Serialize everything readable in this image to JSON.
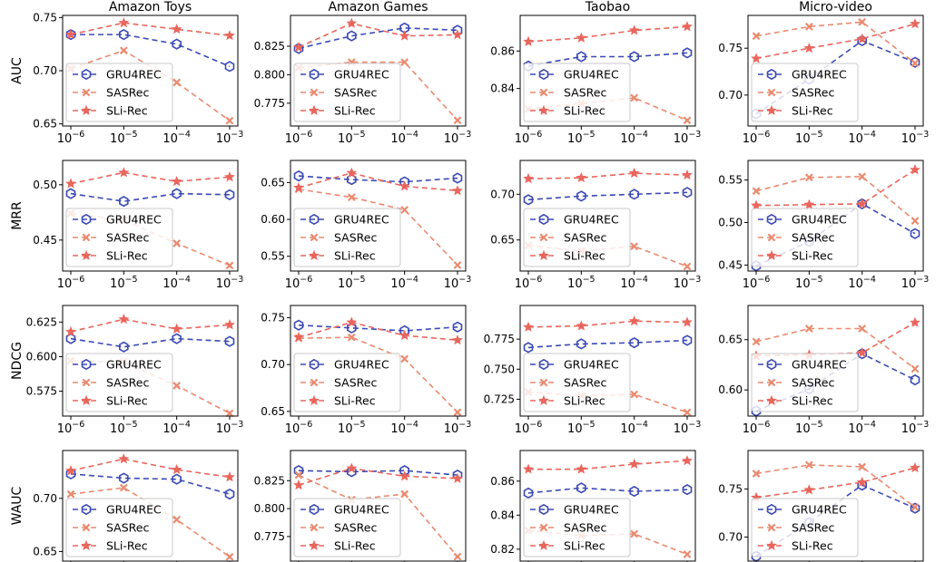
{
  "chart_data": {
    "type": "line",
    "columns": [
      "Amazon Toys",
      "Amazon Games",
      "Taobao",
      "Micro-video"
    ],
    "rows": [
      "AUC",
      "MRR",
      "NDCG",
      "WAUC"
    ],
    "x_ticks": [
      {
        "base": "10",
        "exp": "−6"
      },
      {
        "base": "10",
        "exp": "−5"
      },
      {
        "base": "10",
        "exp": "−4"
      },
      {
        "base": "10",
        "exp": "−3"
      }
    ],
    "x_values": [
      1e-06,
      1e-05,
      0.0001,
      0.001
    ],
    "x_scale": "log",
    "legend": [
      {
        "name": "GRU4REC",
        "color": "#3a49b5",
        "marker": "hexagon"
      },
      {
        "name": "SASRec",
        "color": "#e98a6f",
        "marker": "x"
      },
      {
        "name": "SLi-Rec",
        "color": "#e9665d",
        "marker": "star"
      }
    ],
    "legend_placement": "lower-left",
    "grid": false,
    "panels": [
      {
        "row": "AUC",
        "column": "Amazon Toys",
        "ylim": [
          0.648,
          0.752
        ],
        "yticks": [
          "0.65",
          "0.70",
          "0.75"
        ],
        "ytick_values": [
          0.65,
          0.7,
          0.75
        ],
        "series": [
          {
            "name": "GRU4REC",
            "values": [
              0.734,
              0.734,
              0.725,
              0.704
            ]
          },
          {
            "name": "SASRec",
            "values": [
              0.702,
              0.719,
              0.689,
              0.653
            ]
          },
          {
            "name": "SLi-Rec",
            "values": [
              0.734,
              0.745,
              0.739,
              0.733
            ]
          }
        ]
      },
      {
        "row": "AUC",
        "column": "Amazon Games",
        "ylim": [
          0.755,
          0.852
        ],
        "yticks": [
          "0.775",
          "0.800",
          "0.825"
        ],
        "ytick_values": [
          0.775,
          0.8,
          0.825
        ],
        "series": [
          {
            "name": "GRU4REC",
            "values": [
              0.823,
              0.834,
              0.841,
              0.839
            ]
          },
          {
            "name": "SASRec",
            "values": [
              0.806,
              0.811,
              0.811,
              0.76
            ]
          },
          {
            "name": "SLi-Rec",
            "values": [
              0.824,
              0.845,
              0.834,
              0.835
            ]
          }
        ]
      },
      {
        "row": "AUC",
        "column": "Taobao",
        "ylim": [
          0.82,
          0.879
        ],
        "yticks": [
          "0.84",
          "0.86"
        ],
        "ytick_values": [
          0.84,
          0.86
        ],
        "series": [
          {
            "name": "GRU4REC",
            "values": [
              0.852,
              0.857,
              0.857,
              0.859
            ]
          },
          {
            "name": "SASRec",
            "values": [
              0.829,
              0.832,
              0.835,
              0.823
            ]
          },
          {
            "name": "SLi-Rec",
            "values": [
              0.865,
              0.867,
              0.871,
              0.873
            ]
          }
        ]
      },
      {
        "row": "AUC",
        "column": "Micro-video",
        "ylim": [
          0.667,
          0.785
        ],
        "yticks": [
          "0.70",
          "0.75"
        ],
        "ytick_values": [
          0.7,
          0.75
        ],
        "series": [
          {
            "name": "GRU4REC",
            "values": [
              0.68,
              0.717,
              0.758,
              0.735
            ]
          },
          {
            "name": "SASRec",
            "values": [
              0.763,
              0.773,
              0.778,
              0.734
            ]
          },
          {
            "name": "SLi-Rec",
            "values": [
              0.739,
              0.75,
              0.76,
              0.776
            ]
          }
        ]
      },
      {
        "row": "MRR",
        "column": "Amazon Toys",
        "ylim": [
          0.422,
          0.522
        ],
        "yticks": [
          "0.45",
          "0.50"
        ],
        "ytick_values": [
          0.45,
          0.5
        ],
        "series": [
          {
            "name": "GRU4REC",
            "values": [
              0.492,
              0.485,
              0.492,
              0.491
            ]
          },
          {
            "name": "SASRec",
            "values": [
              0.474,
              0.468,
              0.447,
              0.427
            ]
          },
          {
            "name": "SLi-Rec",
            "values": [
              0.501,
              0.511,
              0.503,
              0.507
            ]
          }
        ]
      },
      {
        "row": "MRR",
        "column": "Amazon Games",
        "ylim": [
          0.53,
          0.68
        ],
        "yticks": [
          "0.55",
          "0.60",
          "0.65"
        ],
        "ytick_values": [
          0.55,
          0.6,
          0.65
        ],
        "series": [
          {
            "name": "GRU4REC",
            "values": [
              0.659,
              0.654,
              0.651,
              0.656
            ]
          },
          {
            "name": "SASRec",
            "values": [
              0.641,
              0.63,
              0.613,
              0.538
            ]
          },
          {
            "name": "SLi-Rec",
            "values": [
              0.643,
              0.663,
              0.645,
              0.639
            ]
          }
        ]
      },
      {
        "row": "MRR",
        "column": "Taobao",
        "ylim": [
          0.616,
          0.737
        ],
        "yticks": [
          "0.65",
          "0.70"
        ],
        "ytick_values": [
          0.65,
          0.7
        ],
        "series": [
          {
            "name": "GRU4REC",
            "values": [
              0.694,
              0.698,
              0.7,
              0.702
            ]
          },
          {
            "name": "SASRec",
            "values": [
              0.644,
              0.638,
              0.643,
              0.621
            ]
          },
          {
            "name": "SLi-Rec",
            "values": [
              0.717,
              0.718,
              0.723,
              0.721
            ]
          }
        ]
      },
      {
        "row": "MRR",
        "column": "Micro-video",
        "ylim": [
          0.443,
          0.573
        ],
        "yticks": [
          "0.45",
          "0.50",
          "0.55"
        ],
        "ytick_values": [
          0.45,
          0.5,
          0.55
        ],
        "series": [
          {
            "name": "GRU4REC",
            "values": [
              0.449,
              0.478,
              0.522,
              0.487
            ]
          },
          {
            "name": "SASRec",
            "values": [
              0.537,
              0.553,
              0.554,
              0.502
            ]
          },
          {
            "name": "SLi-Rec",
            "values": [
              0.52,
              0.521,
              0.522,
              0.562
            ]
          }
        ]
      },
      {
        "row": "NDCG",
        "column": "Amazon Toys",
        "ylim": [
          0.557,
          0.637
        ],
        "yticks": [
          "0.575",
          "0.600",
          "0.625"
        ],
        "ytick_values": [
          0.575,
          0.6,
          0.625
        ],
        "series": [
          {
            "name": "GRU4REC",
            "values": [
              0.613,
              0.607,
              0.613,
              0.611
            ]
          },
          {
            "name": "SASRec",
            "values": [
              0.597,
              0.596,
              0.579,
              0.559
            ]
          },
          {
            "name": "SLi-Rec",
            "values": [
              0.618,
              0.627,
              0.62,
              0.623
            ]
          }
        ]
      },
      {
        "row": "NDCG",
        "column": "Amazon Games",
        "ylim": [
          0.645,
          0.763
        ],
        "yticks": [
          "0.65",
          "0.70",
          "0.75"
        ],
        "ytick_values": [
          0.65,
          0.7,
          0.75
        ],
        "series": [
          {
            "name": "GRU4REC",
            "values": [
              0.742,
              0.739,
              0.736,
              0.74
            ]
          },
          {
            "name": "SASRec",
            "values": [
              0.728,
              0.729,
              0.706,
              0.649
            ]
          },
          {
            "name": "SLi-Rec",
            "values": [
              0.729,
              0.745,
              0.731,
              0.726
            ]
          }
        ]
      },
      {
        "row": "NDCG",
        "column": "Taobao",
        "ylim": [
          0.711,
          0.803
        ],
        "yticks": [
          "0.725",
          "0.750",
          "0.775"
        ],
        "ytick_values": [
          0.725,
          0.75,
          0.775
        ],
        "series": [
          {
            "name": "GRU4REC",
            "values": [
              0.768,
              0.771,
              0.772,
              0.774
            ]
          },
          {
            "name": "SASRec",
            "values": [
              0.731,
              0.728,
              0.729,
              0.714
            ]
          },
          {
            "name": "SLi-Rec",
            "values": [
              0.785,
              0.786,
              0.79,
              0.789
            ]
          }
        ]
      },
      {
        "row": "NDCG",
        "column": "Micro-video",
        "ylim": [
          0.574,
          0.684
        ],
        "yticks": [
          "0.60",
          "0.65"
        ],
        "ytick_values": [
          0.6,
          0.65
        ],
        "series": [
          {
            "name": "GRU4REC",
            "values": [
              0.579,
              0.601,
              0.636,
              0.61
            ]
          },
          {
            "name": "SASRec",
            "values": [
              0.648,
              0.661,
              0.661,
              0.621
            ]
          },
          {
            "name": "SLi-Rec",
            "values": [
              0.634,
              0.635,
              0.637,
              0.667
            ]
          }
        ]
      },
      {
        "row": "WAUC",
        "column": "Amazon Toys",
        "ylim": [
          0.641,
          0.745
        ],
        "yticks": [
          "0.65",
          "0.70"
        ],
        "ytick_values": [
          0.65,
          0.7
        ],
        "series": [
          {
            "name": "GRU4REC",
            "values": [
              0.723,
              0.719,
              0.718,
              0.704
            ]
          },
          {
            "name": "SASRec",
            "values": [
              0.704,
              0.71,
              0.68,
              0.645
            ]
          },
          {
            "name": "SLi-Rec",
            "values": [
              0.726,
              0.737,
              0.727,
              0.72
            ]
          }
        ]
      },
      {
        "row": "WAUC",
        "column": "Amazon Games",
        "ylim": [
          0.753,
          0.852
        ],
        "yticks": [
          "0.775",
          "0.800",
          "0.825"
        ],
        "ytick_values": [
          0.775,
          0.8,
          0.825
        ],
        "series": [
          {
            "name": "GRU4REC",
            "values": [
              0.834,
              0.833,
              0.834,
              0.83
            ]
          },
          {
            "name": "SASRec",
            "values": [
              0.83,
              0.808,
              0.813,
              0.757
            ]
          },
          {
            "name": "SLi-Rec",
            "values": [
              0.821,
              0.836,
              0.829,
              0.827
            ]
          }
        ]
      },
      {
        "row": "WAUC",
        "column": "Taobao",
        "ylim": [
          0.813,
          0.878
        ],
        "yticks": [
          "0.82",
          "0.84",
          "0.86"
        ],
        "ytick_values": [
          0.82,
          0.84,
          0.86
        ],
        "series": [
          {
            "name": "GRU4REC",
            "values": [
              0.853,
              0.856,
              0.854,
              0.855
            ]
          },
          {
            "name": "SASRec",
            "values": [
              0.831,
              0.828,
              0.829,
              0.817
            ]
          },
          {
            "name": "SLi-Rec",
            "values": [
              0.867,
              0.867,
              0.87,
              0.872
            ]
          }
        ]
      },
      {
        "row": "WAUC",
        "column": "Micro-video",
        "ylim": [
          0.675,
          0.79
        ],
        "yticks": [
          "0.70",
          "0.75"
        ],
        "ytick_values": [
          0.7,
          0.75
        ],
        "series": [
          {
            "name": "GRU4REC",
            "values": [
              0.68,
              0.715,
              0.754,
              0.73
            ]
          },
          {
            "name": "SASRec",
            "values": [
              0.766,
              0.775,
              0.773,
              0.731
            ]
          },
          {
            "name": "SLi-Rec",
            "values": [
              0.741,
              0.749,
              0.757,
              0.772
            ]
          }
        ]
      }
    ]
  }
}
